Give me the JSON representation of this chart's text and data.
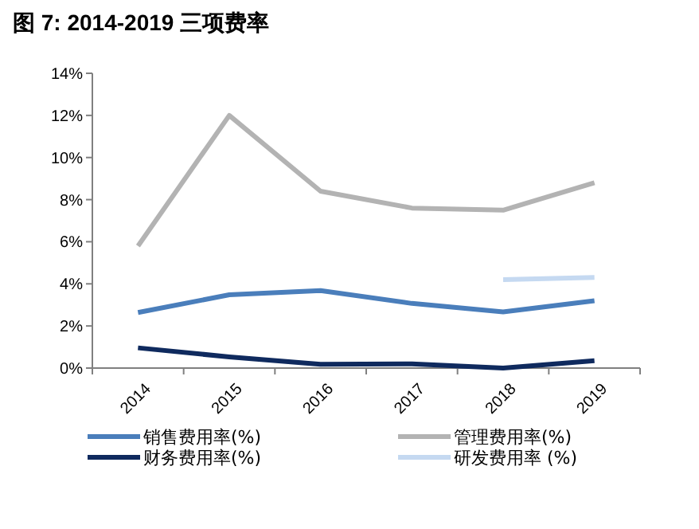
{
  "chart_data": {
    "type": "line",
    "title": "图 7: 2014-2019 三项费率",
    "categories": [
      "2014",
      "2015",
      "2016",
      "2017",
      "2018",
      "2019"
    ],
    "ylim": [
      0,
      14
    ],
    "yticks": [
      {
        "value": 0,
        "label": "0%"
      },
      {
        "value": 2,
        "label": "2%"
      },
      {
        "value": 4,
        "label": "4%"
      },
      {
        "value": 6,
        "label": "6%"
      },
      {
        "value": 8,
        "label": "8%"
      },
      {
        "value": 10,
        "label": "10%"
      },
      {
        "value": 12,
        "label": "12%"
      },
      {
        "value": 14,
        "label": "14%"
      }
    ],
    "legend": "bottom",
    "series": [
      {
        "name": "销售费用率(%)",
        "color": "#4a7ebb",
        "values": [
          2.64,
          3.48,
          3.68,
          3.07,
          2.67,
          3.2
        ]
      },
      {
        "name": "管理费用率(%)",
        "color": "#b3b3b3",
        "values": [
          5.8,
          12.0,
          8.4,
          7.6,
          7.5,
          8.8
        ]
      },
      {
        "name": "财务费用率(%)",
        "color": "#0f2a5e",
        "values": [
          0.96,
          0.53,
          0.18,
          0.2,
          0.0,
          0.35
        ]
      },
      {
        "name": "研发费用率 (%)",
        "color": "#c5d9f1",
        "values": [
          null,
          null,
          null,
          null,
          4.2,
          4.3
        ]
      }
    ]
  }
}
